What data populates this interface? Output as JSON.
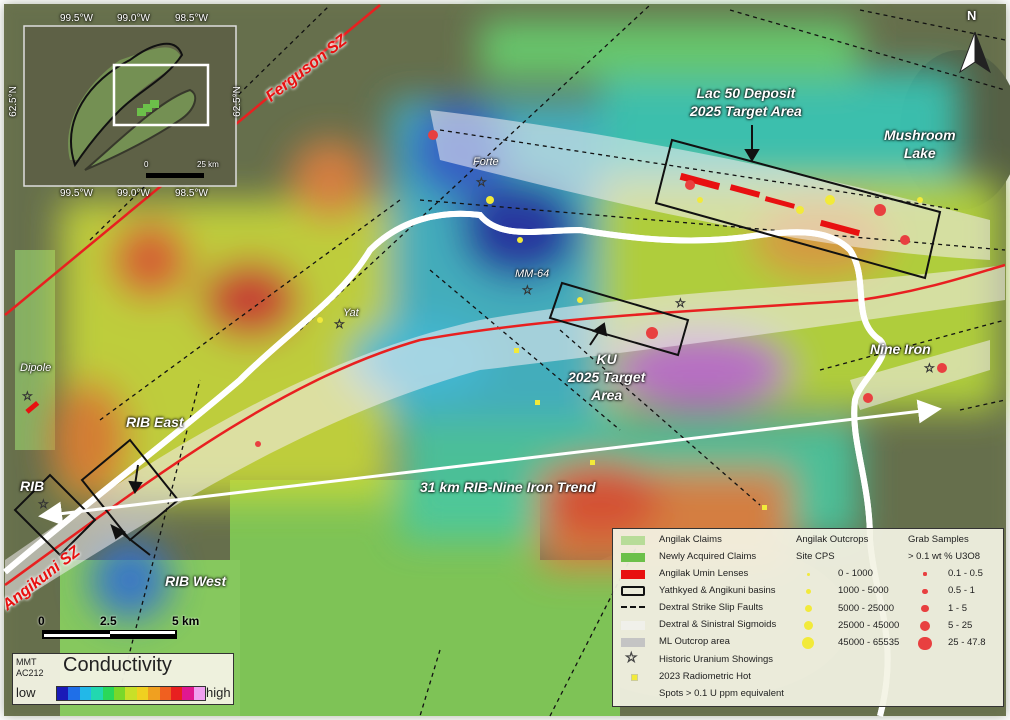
{
  "north_arrow": {
    "label": "N"
  },
  "inset": {
    "top_ticks": [
      "99.5°W",
      "99.0°W",
      "98.5°W"
    ],
    "bottom_ticks": [
      "99.5°W",
      "99.0°W",
      "98.5°W"
    ],
    "left_tick": "62.5°N",
    "right_tick": "62.5°N",
    "scale": [
      "0",
      "25 km"
    ]
  },
  "labels": {
    "ferguson": "Ferguson SZ",
    "angikuni": "Angikuni SZ",
    "lac50": [
      "Lac 50 Deposit",
      "2025 Target Area"
    ],
    "mushroom": [
      "Mushroom",
      "Lake"
    ],
    "ku": [
      "KU",
      "2025 Target",
      "Area"
    ],
    "nine_iron": "Nine Iron",
    "rib_east": "RIB East",
    "rib_west": "RIB West",
    "rib": "RIB",
    "trend": "31 km RIB-Nine Iron Trend",
    "forte": "Forte",
    "mm64": "MM-64",
    "yat": "Yat",
    "dipole": "Dipole"
  },
  "scale_bar": {
    "ticks": [
      "0",
      "2.5",
      "5 km"
    ]
  },
  "conductivity": {
    "source": [
      "MMT",
      "AC212"
    ],
    "title": "Conductivity",
    "low": "low",
    "high": "high",
    "ramp": [
      "#1a1ab8",
      "#1f6fe8",
      "#22b8e8",
      "#22d8b0",
      "#2ad85a",
      "#7ad82a",
      "#c8e028",
      "#f0d020",
      "#f0a020",
      "#f06020",
      "#e82020",
      "#e01890",
      "#f0a0f0"
    ]
  },
  "legend": {
    "items": [
      {
        "label": "Angilak Claims",
        "color": "#b8dc98"
      },
      {
        "label": "Newly Acquired Claims",
        "color": "#6cc04a"
      },
      {
        "label": "Angilak Umin Lenses",
        "color": "#e81010"
      },
      {
        "label": "Yathkyed & Angikuni basins",
        "color": "#111111"
      },
      {
        "label": "Dextral Strike Slip Faults",
        "color": "#111111"
      },
      {
        "label": "Dextral & Sinistral Sigmoids",
        "color": "#f0f0ea"
      },
      {
        "label": "ML Outcrop area",
        "color": "#c4c4c4"
      },
      {
        "label": "Historic Uranium Showings"
      },
      {
        "label": "2023 Radiometric Hot"
      },
      {
        "label": "Spots > 0.1 U ppm equivalent"
      }
    ],
    "outcrops": {
      "title": "Angilak Outcrops",
      "subtitle": "Site CPS",
      "ranges": [
        "0 - 1000",
        "1000 - 5000",
        "5000 - 25000",
        "25000 - 45000",
        "45000 - 65535"
      ],
      "color": "#f2ea3a"
    },
    "grab": {
      "title": "Grab Samples",
      "subtitle": "> 0.1 wt % U3O8",
      "ranges": [
        "0.1 - 0.5",
        "0.5 - 1",
        "1 - 5",
        "5 - 25",
        "25 - 47.8"
      ],
      "color": "#e84040"
    }
  }
}
